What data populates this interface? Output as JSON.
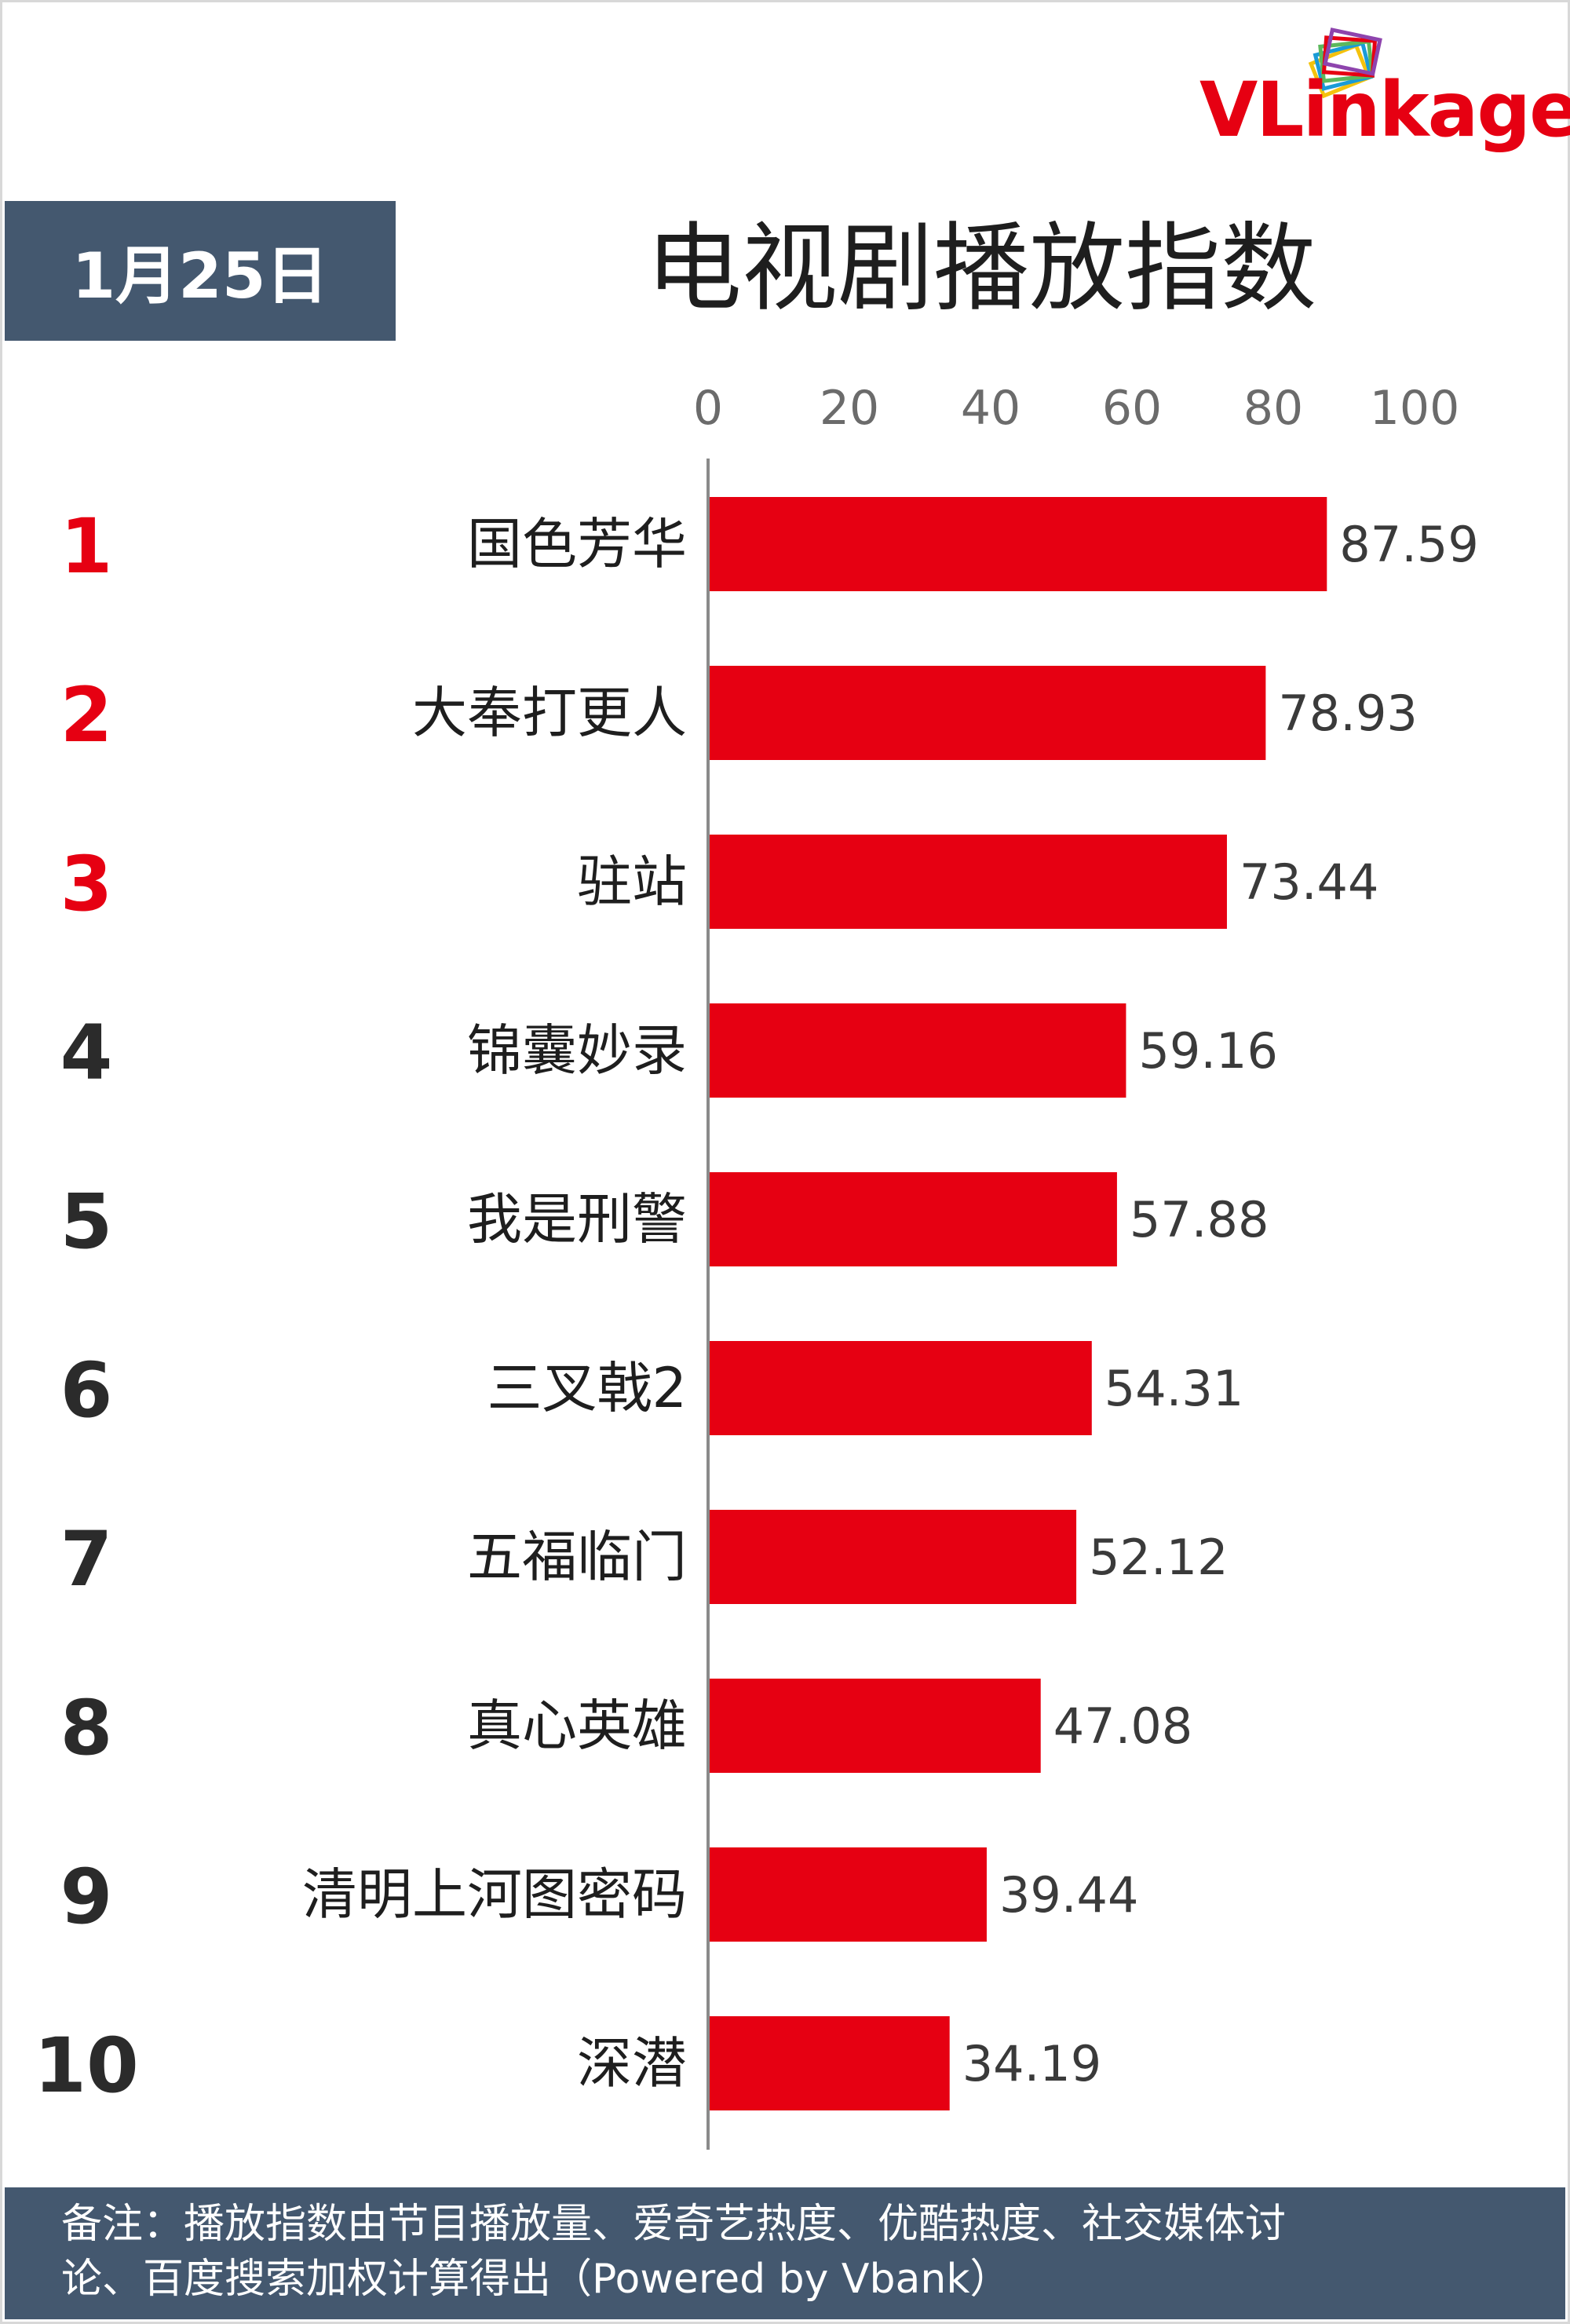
{
  "logo": {
    "text_v": "V",
    "text_rest": "Linkage",
    "brand_red": "#e60012",
    "brand_gray": "#4d4d4d"
  },
  "date_badge": "1月25日",
  "chart_data": {
    "type": "bar",
    "orientation": "horizontal",
    "title": "电视剧播放指数",
    "ranks": [
      "1",
      "2",
      "3",
      "4",
      "5",
      "6",
      "7",
      "8",
      "9",
      "10"
    ],
    "categories": [
      "国色芳华",
      "大奉打更人",
      "驻站",
      "锦囊妙录",
      "我是刑警",
      "三叉戟2",
      "五福临门",
      "真心英雄",
      "清明上河图密码",
      "深潜"
    ],
    "values": [
      87.59,
      78.93,
      73.44,
      59.16,
      57.88,
      54.31,
      52.12,
      47.08,
      39.44,
      34.19
    ],
    "xlim": [
      0,
      100
    ],
    "xticks": [
      0,
      20,
      40,
      60,
      80,
      100
    ],
    "tick_position": "top",
    "grid": false,
    "legend": "none",
    "bar_color": "#e60012",
    "top3_rank_color": "#e60012",
    "other_rank_color": "#2b2b2b"
  },
  "footer": {
    "line1": "备注：播放指数由节目播放量、爱奇艺热度、优酷热度、社交媒体讨",
    "line2": "论、百度搜索加权计算得出（Powered by Vbank）"
  }
}
